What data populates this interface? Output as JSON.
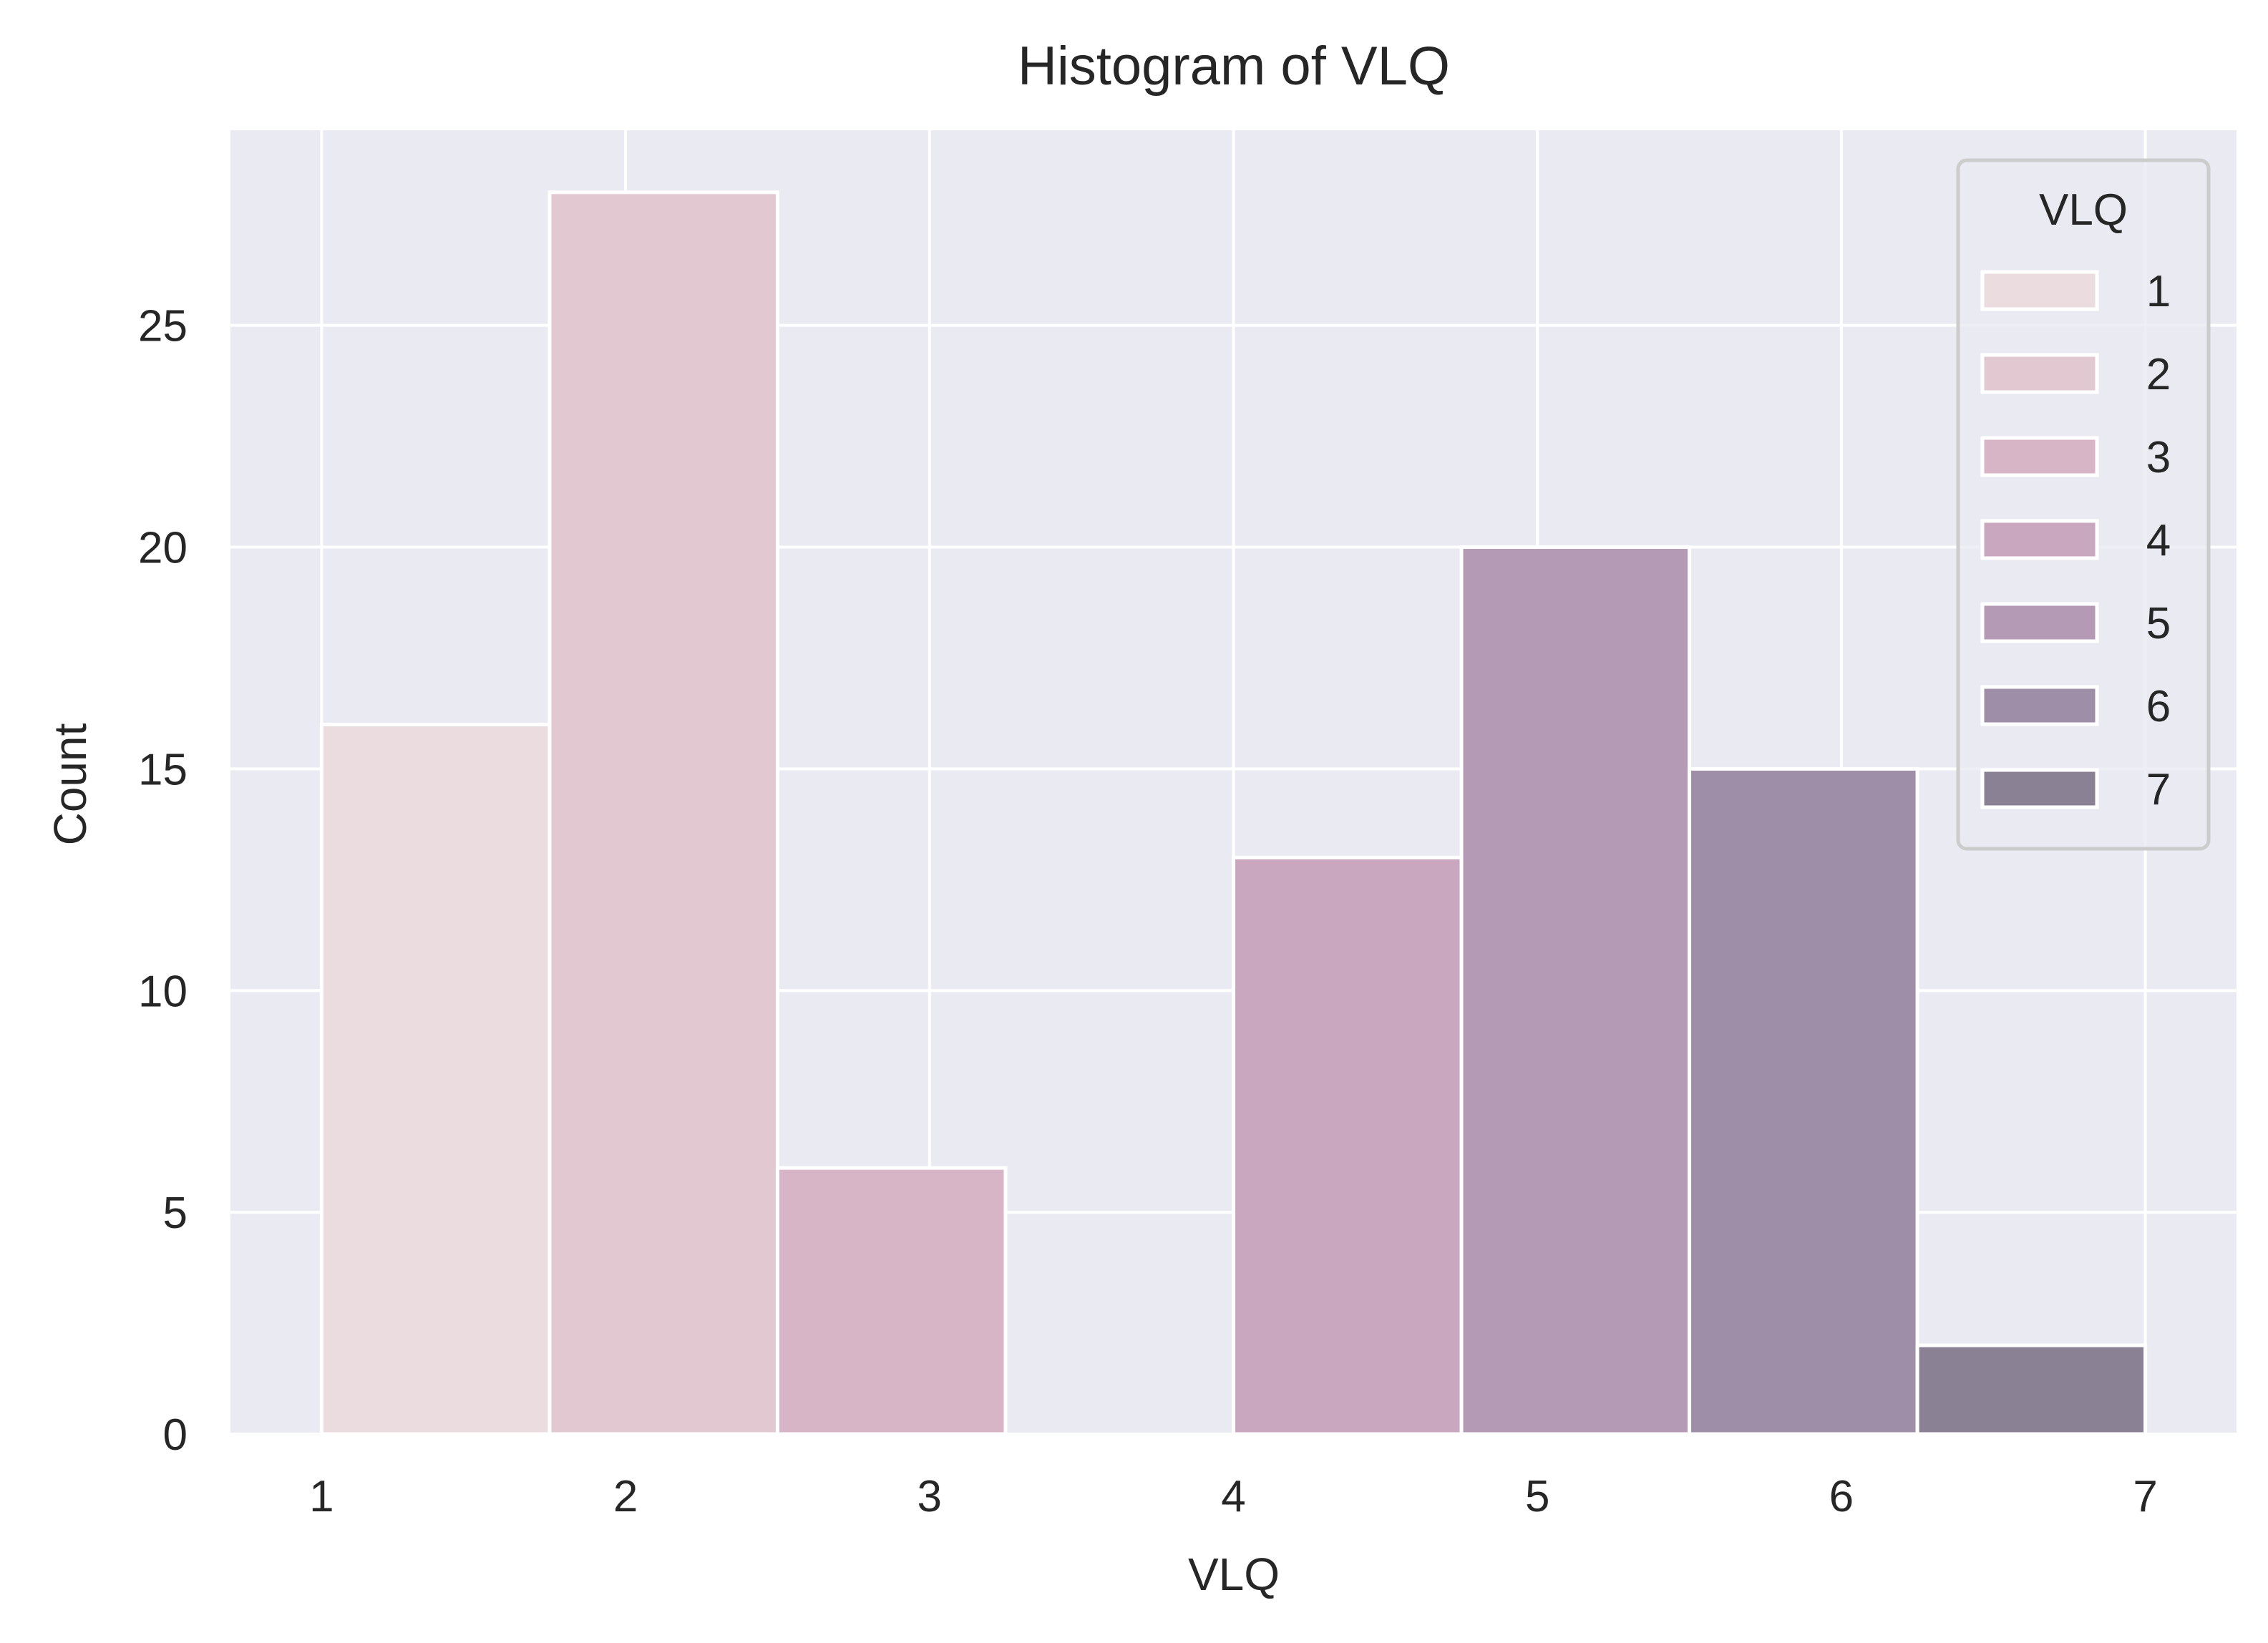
{
  "chart_data": {
    "type": "bar",
    "title": "Histogram of VLQ",
    "xlabel": "VLQ",
    "ylabel": "Count",
    "xlim": [
      0.7,
      7.3
    ],
    "ylim": [
      0,
      29.4
    ],
    "xticks": [
      1,
      2,
      3,
      4,
      5,
      6,
      7
    ],
    "yticks": [
      0,
      5,
      10,
      15,
      20,
      25
    ],
    "bin_width": 0.75,
    "bins": [
      {
        "start": 1.0,
        "end": 1.75,
        "value": 16,
        "hue": "1"
      },
      {
        "start": 1.75,
        "end": 2.5,
        "value": 28,
        "hue": "2"
      },
      {
        "start": 2.5,
        "end": 3.25,
        "value": 6,
        "hue": "3"
      },
      {
        "start": 3.25,
        "end": 4.0,
        "value": 0,
        "hue": "4"
      },
      {
        "start": 4.0,
        "end": 4.75,
        "value": 13,
        "hue": "4"
      },
      {
        "start": 4.75,
        "end": 5.5,
        "value": 20,
        "hue": "5"
      },
      {
        "start": 5.5,
        "end": 6.25,
        "value": 15,
        "hue": "6"
      },
      {
        "start": 6.25,
        "end": 7.0,
        "value": 2,
        "hue": "7"
      }
    ],
    "legend": {
      "title": "VLQ",
      "placement": "upper-right",
      "entries": [
        {
          "label": "1",
          "color": "#ebdcdf"
        },
        {
          "label": "2",
          "color": "#e2c8d0"
        },
        {
          "label": "3",
          "color": "#d7b5c6"
        },
        {
          "label": "4",
          "color": "#c9a7bf"
        },
        {
          "label": "5",
          "color": "#b59ab5"
        },
        {
          "label": "6",
          "color": "#9f8ea7"
        },
        {
          "label": "7",
          "color": "#8b8194"
        }
      ]
    },
    "grid": true,
    "background": "#eaeaf2"
  }
}
